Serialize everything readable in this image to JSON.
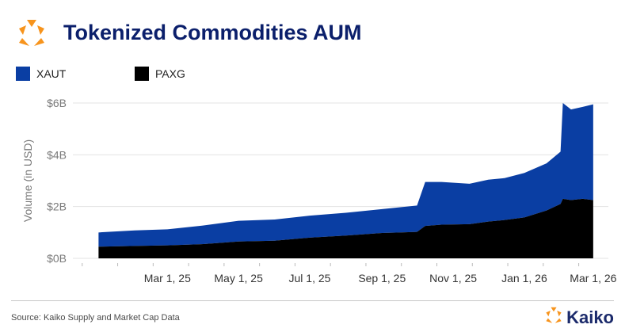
{
  "header": {
    "title": "Tokenized Commodities AUM"
  },
  "footer": {
    "source": "Source: Kaiko Supply and Market Cap Data",
    "brand": "Kaiko"
  },
  "colors": {
    "xaut": "#0a3ea3",
    "paxg": "#000000",
    "title": "#0b1f6b",
    "logo_orange": "#f7941d",
    "grid": "#e3e3e3",
    "axis_text": "#7a7a7a"
  },
  "chart_data": {
    "type": "area",
    "stacked": true,
    "title": "Tokenized Commodities AUM",
    "ylabel": "Volume (in USD)",
    "xlabel": "",
    "ylim": [
      0,
      6
    ],
    "yticks": [
      {
        "value": 0,
        "label": "$0B"
      },
      {
        "value": 2,
        "label": "$2B"
      },
      {
        "value": 4,
        "label": "$4B"
      },
      {
        "value": 6,
        "label": "$6B"
      }
    ],
    "xlim": [
      "2024-12-10",
      "2026-03-14"
    ],
    "xticks": [
      {
        "date": "2025-03-01",
        "label": "Mar 1, 25"
      },
      {
        "date": "2025-05-01",
        "label": "May 1, 25"
      },
      {
        "date": "2025-07-01",
        "label": "Jul 1, 25"
      },
      {
        "date": "2025-09-01",
        "label": "Sep 1, 25"
      },
      {
        "date": "2025-11-01",
        "label": "Nov 1, 25"
      },
      {
        "date": "2026-01-01",
        "label": "Jan 1, 26"
      },
      {
        "date": "2026-03-01",
        "label": "Mar 1, 26"
      }
    ],
    "grid": true,
    "legend_position": "top-left",
    "x": [
      "2025-01-01",
      "2025-02-01",
      "2025-03-01",
      "2025-04-01",
      "2025-05-01",
      "2025-06-01",
      "2025-07-01",
      "2025-08-01",
      "2025-09-01",
      "2025-10-01",
      "2025-10-08",
      "2025-10-22",
      "2025-11-15",
      "2025-12-01",
      "2025-12-15",
      "2026-01-01",
      "2026-01-20",
      "2026-02-01",
      "2026-02-03",
      "2026-02-10",
      "2026-02-20",
      "2026-03-01"
    ],
    "series": [
      {
        "name": "PAXG",
        "values": [
          0.45,
          0.48,
          0.5,
          0.55,
          0.65,
          0.68,
          0.8,
          0.88,
          0.98,
          1.02,
          1.25,
          1.3,
          1.32,
          1.42,
          1.48,
          1.58,
          1.85,
          2.1,
          2.3,
          2.25,
          2.3,
          2.25
        ]
      },
      {
        "name": "XAUT",
        "values": [
          0.55,
          0.6,
          0.62,
          0.72,
          0.8,
          0.82,
          0.85,
          0.88,
          0.92,
          1.02,
          1.7,
          1.65,
          1.56,
          1.62,
          1.62,
          1.72,
          1.82,
          2.02,
          3.7,
          3.5,
          3.55,
          3.7
        ]
      }
    ]
  }
}
